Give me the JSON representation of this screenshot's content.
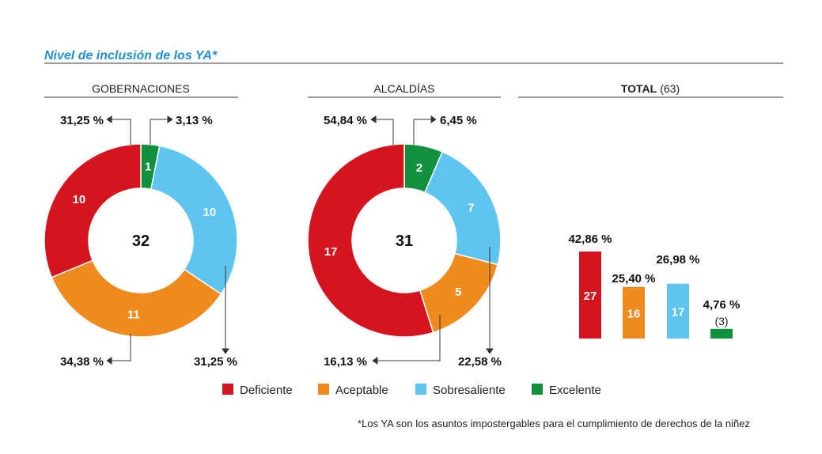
{
  "title": "Nivel de inclusión de los YA*",
  "categories": [
    "Deficiente",
    "Aceptable",
    "Sobresaliente",
    "Excelente"
  ],
  "colors": {
    "Deficiente": "#d4141f",
    "Aceptable": "#ee8a1e",
    "Sobresaliente": "#5dc5ef",
    "Excelente": "#11913d"
  },
  "footnote": "*Los YA son los asuntos impostergables para el cumplimiento de derechos de la niñez",
  "chart_data": [
    {
      "type": "pie",
      "title": "GOBERNACIONES",
      "total": 32,
      "total_label": "32",
      "slices": [
        {
          "category": "Excelente",
          "value": 1,
          "label": "1",
          "percent": "3,13 %"
        },
        {
          "category": "Sobresaliente",
          "value": 10,
          "label": "10",
          "percent": "31,25 %"
        },
        {
          "category": "Aceptable",
          "value": 11,
          "label": "11",
          "percent": "34,38 %"
        },
        {
          "category": "Deficiente",
          "value": 10,
          "label": "10",
          "percent": "31,25 %"
        }
      ]
    },
    {
      "type": "pie",
      "title": "ALCALDÍAS",
      "total": 31,
      "total_label": "31",
      "slices": [
        {
          "category": "Excelente",
          "value": 2,
          "label": "2",
          "percent": "6,45 %"
        },
        {
          "category": "Sobresaliente",
          "value": 7,
          "label": "7",
          "percent": "22,58 %"
        },
        {
          "category": "Aceptable",
          "value": 5,
          "label": "5",
          "percent": "16,13 %"
        },
        {
          "category": "Deficiente",
          "value": 17,
          "label": "17",
          "percent": "54,84 %"
        }
      ]
    },
    {
      "type": "bar",
      "title": "TOTAL",
      "title_suffix": "(63)",
      "categories": [
        "Deficiente",
        "Aceptable",
        "Sobresaliente",
        "Excelente"
      ],
      "values": [
        27,
        16,
        17,
        3
      ],
      "value_labels": [
        "27",
        "16",
        "17",
        "(3)"
      ],
      "percent_labels": [
        "42,86 %",
        "25,40 %",
        "26,98 %",
        "4,76 %"
      ]
    }
  ]
}
